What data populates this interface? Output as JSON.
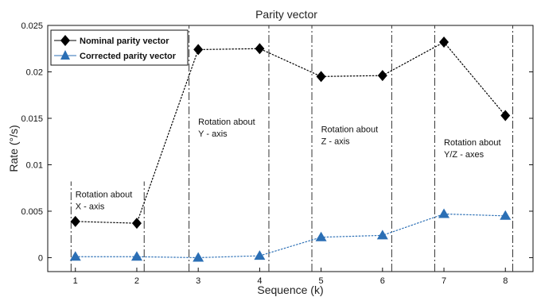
{
  "chart_data": {
    "type": "line",
    "title": "Parity vector",
    "xlabel": "Sequence (k)",
    "ylabel": "Rate (°/s)",
    "x": [
      1,
      2,
      3,
      4,
      5,
      6,
      7,
      8
    ],
    "xlim": [
      0.55,
      8.45
    ],
    "ylim": [
      -0.0015,
      0.025
    ],
    "yticks": [
      0,
      0.005,
      0.01,
      0.015,
      0.02,
      0.025
    ],
    "ytick_labels": [
      "0",
      "0.005",
      "0.01",
      "0.015",
      "0.02",
      "0.025"
    ],
    "xtick_labels": [
      "1",
      "2",
      "3",
      "4",
      "5",
      "6",
      "7",
      "8"
    ],
    "series": [
      {
        "name": "Nominal parity vector",
        "values": [
          0.0039,
          0.0037,
          0.0224,
          0.0225,
          0.0195,
          0.0196,
          0.0232,
          0.0153
        ],
        "color": "#000000",
        "marker": "diamond",
        "line_style": "dotted"
      },
      {
        "name": "Corrected parity vector",
        "values": [
          0.0001,
          0.0001,
          0.0,
          0.0002,
          0.0022,
          0.0024,
          0.0047,
          0.0045
        ],
        "color": "#2b6fb5",
        "marker": "triangle",
        "line_style": "dotted"
      }
    ],
    "grid": false,
    "legend_placement": "top-left",
    "boundary_lines": [
      {
        "x": 0.93,
        "y_top": 0.0082
      },
      {
        "x": 2.12,
        "y_top": 0.0082
      },
      {
        "x": 2.85,
        "y_top": 0.025
      },
      {
        "x": 4.15,
        "y_top": 0.025
      },
      {
        "x": 4.85,
        "y_top": 0.025
      },
      {
        "x": 6.15,
        "y_top": 0.025
      },
      {
        "x": 6.85,
        "y_top": 0.025
      },
      {
        "x": 8.12,
        "y_top": 0.025
      }
    ],
    "annotations": [
      {
        "lines": [
          "Rotation about",
          "X - axis"
        ],
        "x": 1.0,
        "y": 0.0065
      },
      {
        "lines": [
          "Rotation about",
          "Y - axis"
        ],
        "x": 3.0,
        "y": 0.0143
      },
      {
        "lines": [
          "Rotation about",
          "Z - axis"
        ],
        "x": 5.0,
        "y": 0.0135
      },
      {
        "lines": [
          "Rotation about",
          "Y/Z - axes"
        ],
        "x": 7.0,
        "y": 0.0121
      }
    ]
  }
}
